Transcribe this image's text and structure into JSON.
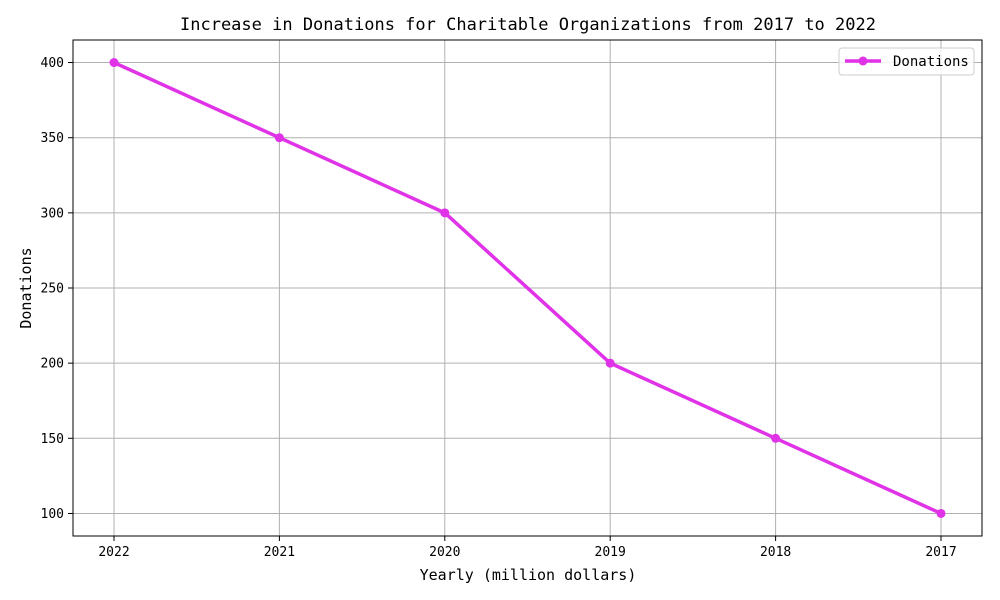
{
  "chart_data": {
    "type": "line",
    "title": "Increase in Donations for Charitable Organizations from 2017 to 2022",
    "xlabel": "Yearly (million dollars)",
    "ylabel": "Donations",
    "categories": [
      "2022",
      "2021",
      "2020",
      "2019",
      "2018",
      "2017"
    ],
    "series": [
      {
        "name": "Donations",
        "values": [
          400,
          350,
          300,
          200,
          150,
          100
        ],
        "color": "#e033e8"
      }
    ],
    "ylim": [
      85,
      415
    ],
    "yticks": [
      100,
      150,
      200,
      250,
      300,
      350,
      400
    ],
    "grid": true,
    "legend_position": "top-right"
  }
}
